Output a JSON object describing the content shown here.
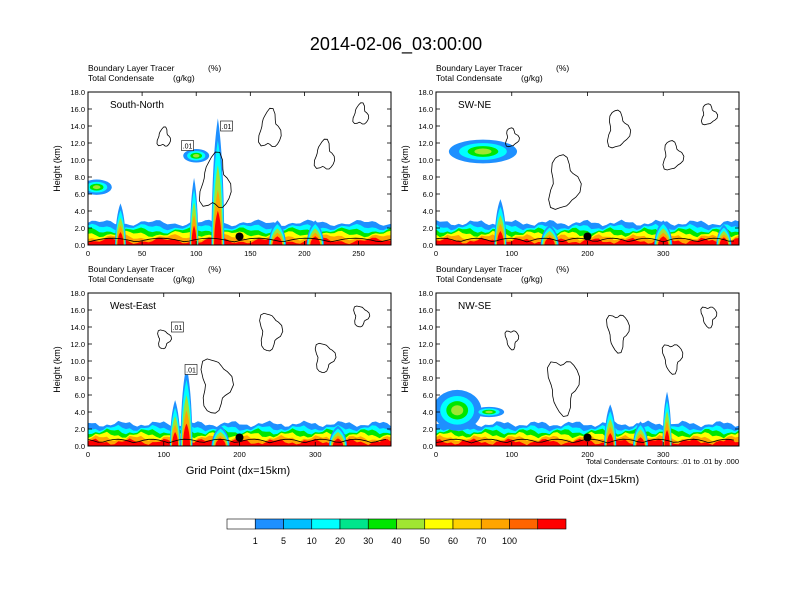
{
  "main_title": "2014-02-06_03:00:00",
  "shaded_label": "Boundary Layer Tracer",
  "shaded_units": "(%)",
  "contour_label": "Total Condensate",
  "contour_units": "(g/kg)",
  "ylabel": "Height (km)",
  "xlabel": "Grid Point (dx=15km)",
  "contour_info": "Total Condensate Contours: .01 to .01 by .000",
  "contour_line_label": ".01",
  "colorbar": {
    "levels": [
      "1",
      "5",
      "10",
      "20",
      "30",
      "40",
      "50",
      "60",
      "70",
      "100"
    ],
    "colors": [
      "#ffffff",
      "#1e90ff",
      "#00bfff",
      "#00ffff",
      "#00e68c",
      "#00e600",
      "#a0e632",
      "#ffff00",
      "#ffd200",
      "#ffa500",
      "#ff6400",
      "#ff0000"
    ]
  },
  "chart_data": [
    {
      "type": "contour",
      "title": "South-North",
      "ylim": [
        0,
        18
      ],
      "yticks": [
        "0.0",
        "2.0",
        "4.0",
        "6.0",
        "8.0",
        "10.0",
        "12.0",
        "14.0",
        "16.0",
        "18.0"
      ],
      "xlim": [
        0,
        280
      ],
      "xticks": [
        0,
        50,
        100,
        150,
        200,
        250
      ],
      "site_point": [
        140,
        1.0
      ],
      "plumes": [
        [
          30,
          4.5,
          5
        ],
        [
          98,
          7.5,
          4
        ],
        [
          120,
          14.5,
          6
        ],
        [
          175,
          2.5,
          8
        ],
        [
          210,
          2.5,
          8
        ]
      ],
      "high_blobs": [
        [
          8,
          6.8,
          14,
          0.9
        ],
        [
          100,
          10.5,
          12,
          0.8
        ]
      ],
      "contour_labels": [
        [
          92,
          11.7
        ],
        [
          128,
          14.0
        ]
      ]
    },
    {
      "type": "contour",
      "title": "SW-NE",
      "ylim": [
        0,
        18
      ],
      "yticks": [
        "0.0",
        "2.0",
        "4.0",
        "6.0",
        "8.0",
        "10.0",
        "12.0",
        "14.0",
        "16.0",
        "18.0"
      ],
      "xlim": [
        0,
        400
      ],
      "xticks": [
        0,
        100,
        200,
        300
      ],
      "site_point": [
        200,
        1.0
      ],
      "plumes": [
        [
          85,
          5.0,
          8
        ],
        [
          150,
          2.0,
          12
        ],
        [
          300,
          2.5,
          12
        ],
        [
          380,
          2.0,
          10
        ]
      ],
      "high_blobs": [
        [
          62,
          11.0,
          45,
          1.4
        ]
      ],
      "contour_labels": []
    },
    {
      "type": "contour",
      "title": "West-East",
      "ylim": [
        0,
        18
      ],
      "yticks": [
        "0.0",
        "2.0",
        "4.0",
        "6.0",
        "8.0",
        "10.0",
        "12.0",
        "14.0",
        "16.0",
        "18.0"
      ],
      "xlim": [
        0,
        400
      ],
      "xticks": [
        0,
        100,
        200,
        300
      ],
      "site_point": [
        200,
        1.0
      ],
      "plumes": [
        [
          115,
          5.0,
          7
        ],
        [
          130,
          9.0,
          8
        ],
        [
          175,
          2.0,
          12
        ],
        [
          330,
          2.0,
          12
        ]
      ],
      "high_blobs": [],
      "contour_labels": [
        [
          118,
          14.0
        ],
        [
          136,
          9.0
        ]
      ]
    },
    {
      "type": "contour",
      "title": "NW-SE",
      "ylim": [
        0,
        18
      ],
      "yticks": [
        "0.0",
        "2.0",
        "4.0",
        "6.0",
        "8.0",
        "10.0",
        "12.0",
        "14.0",
        "16.0",
        "18.0"
      ],
      "xlim": [
        0,
        400
      ],
      "xticks": [
        0,
        100,
        200,
        300
      ],
      "site_point": [
        200,
        1.0
      ],
      "plumes": [
        [
          230,
          4.5,
          8
        ],
        [
          305,
          6.0,
          6
        ],
        [
          270,
          2.5,
          10
        ]
      ],
      "high_blobs": [
        [
          28,
          4.2,
          32,
          2.4
        ],
        [
          70,
          4.0,
          20,
          0.6
        ]
      ],
      "contour_labels": []
    }
  ]
}
